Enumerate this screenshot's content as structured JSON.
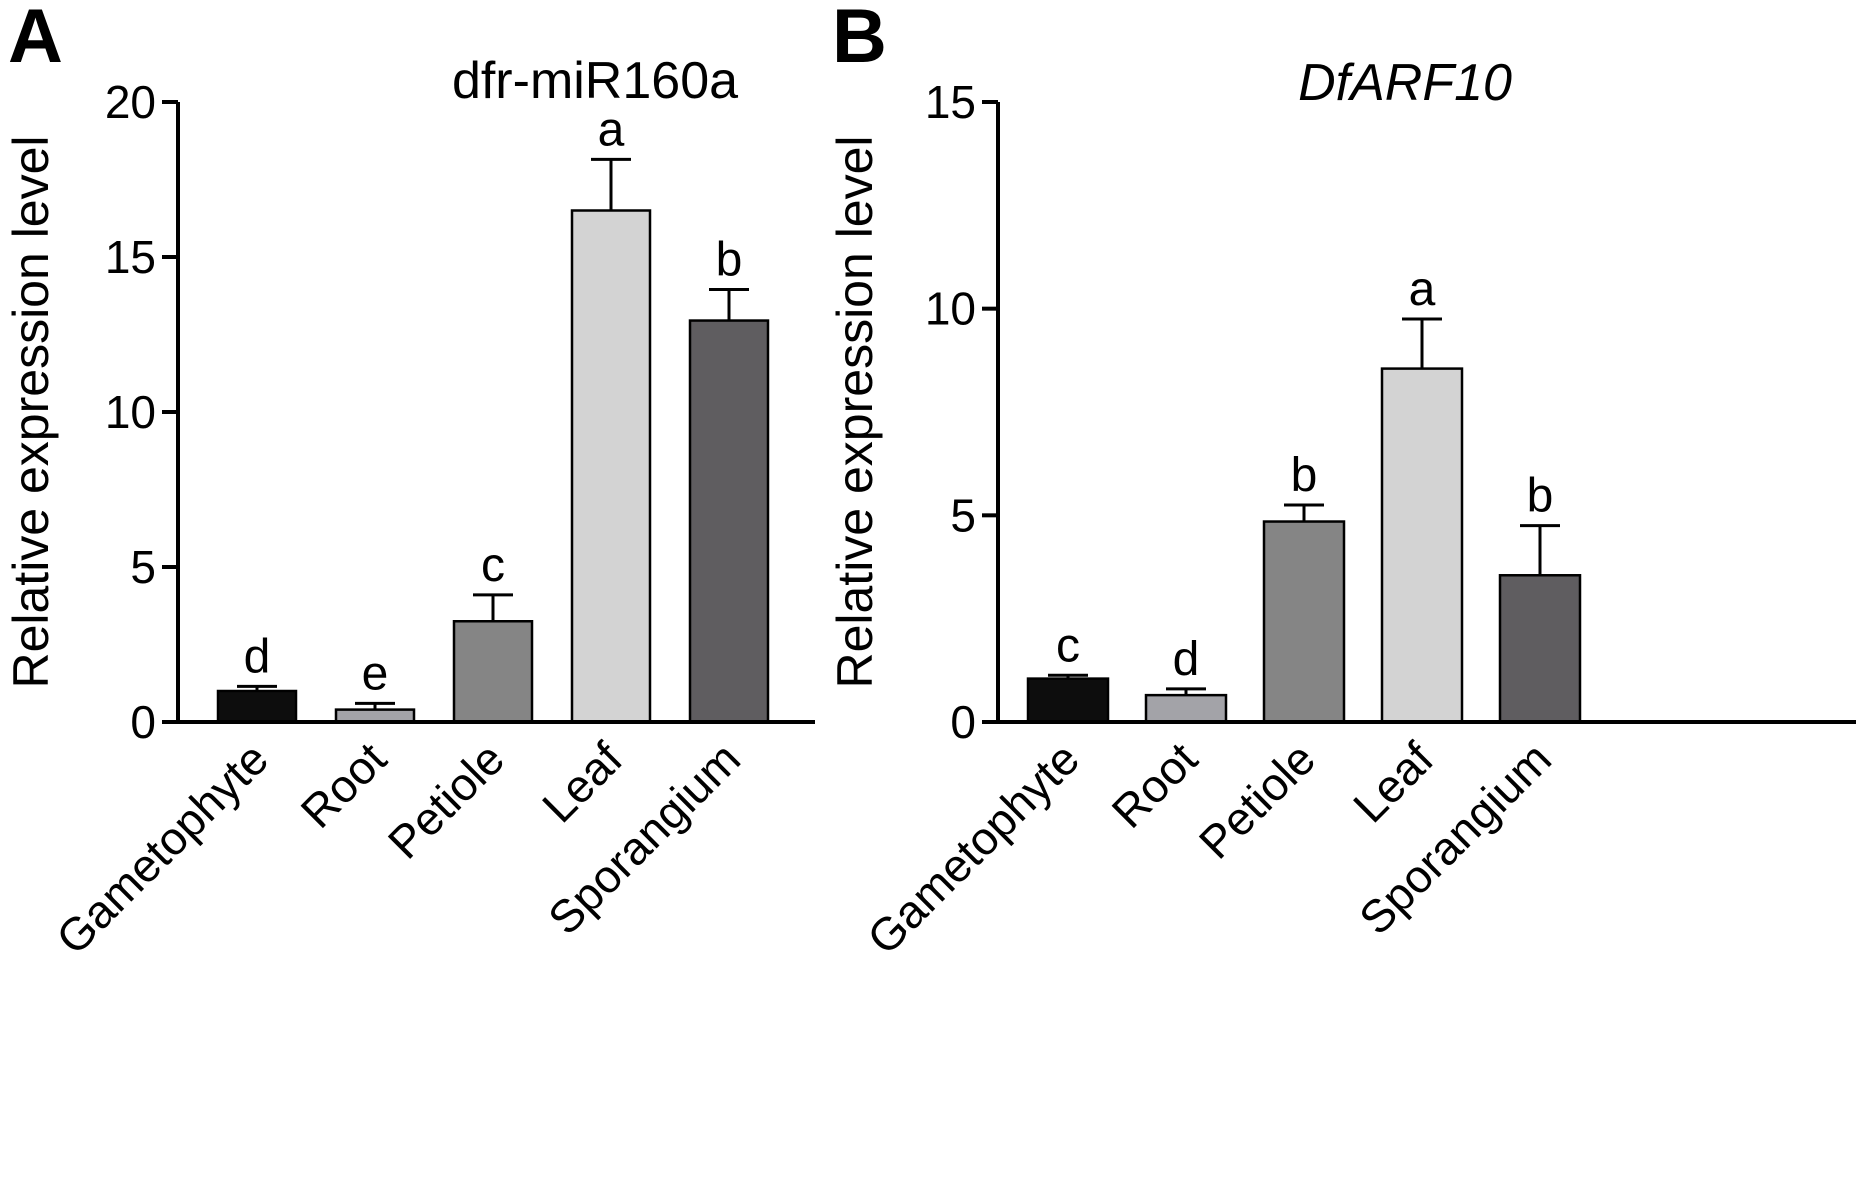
{
  "chart_data": [
    {
      "panel": "A",
      "type": "bar",
      "title": "dfr-miR160a",
      "title_style": "normal",
      "ylabel": "Relative expression level",
      "xlabel": "",
      "ylim": [
        0,
        20
      ],
      "yticks": [
        0,
        5,
        10,
        15,
        20
      ],
      "categories": [
        "Gametophyte",
        "Root",
        "Petiole",
        "Leaf",
        "Sporangium"
      ],
      "values": [
        1.0,
        0.4,
        3.25,
        16.5,
        12.95
      ],
      "errors": [
        0.15,
        0.2,
        0.85,
        1.65,
        1.0
      ],
      "significance": [
        "d",
        "e",
        "c",
        "a",
        "b"
      ],
      "colors": [
        "#0d0d0d",
        "#a3a3a8",
        "#858585",
        "#d3d3d3",
        "#5f5d60"
      ],
      "grid": false
    },
    {
      "panel": "B",
      "type": "bar",
      "title": "DfARF10",
      "title_style": "italic",
      "ylabel": "Relative expression level",
      "xlabel": "",
      "ylim": [
        0,
        15
      ],
      "yticks": [
        0,
        5,
        10,
        15
      ],
      "categories": [
        "Gametophyte",
        "Root",
        "Petiole",
        "Leaf",
        "Sporangium"
      ],
      "values": [
        1.05,
        0.65,
        4.85,
        8.55,
        3.55
      ],
      "errors": [
        0.08,
        0.15,
        0.4,
        1.2,
        1.2
      ],
      "significance": [
        "c",
        "d",
        "b",
        "a",
        "b"
      ],
      "colors": [
        "#0d0d0d",
        "#a3a3a8",
        "#858585",
        "#d3d3d3",
        "#5f5d60"
      ],
      "grid": false
    }
  ]
}
